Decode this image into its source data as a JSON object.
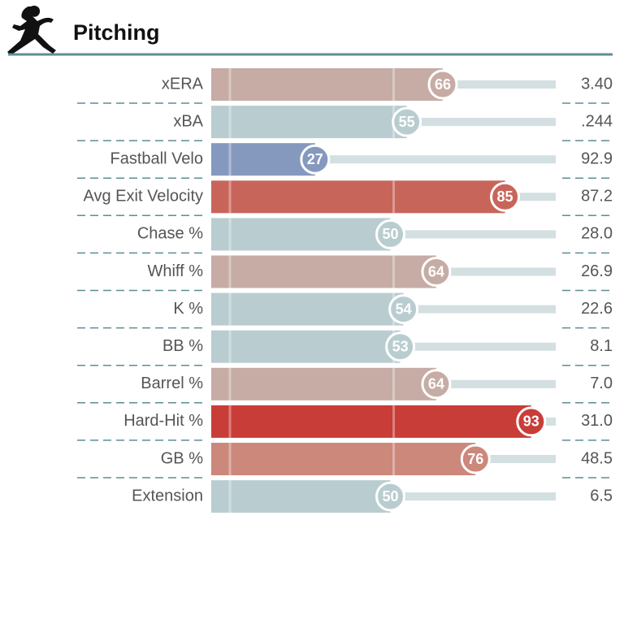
{
  "chart_data": {
    "type": "bar",
    "title": "Pitching",
    "categories": [
      "xERA",
      "xBA",
      "Fastball Velo",
      "Avg Exit Velocity",
      "Chase %",
      "Whiff %",
      "K %",
      "BB %",
      "Barrel %",
      "Hard-Hit %",
      "GB %",
      "Extension"
    ],
    "values": [
      66,
      55,
      27,
      85,
      50,
      64,
      54,
      53,
      64,
      93,
      76,
      50
    ],
    "colors": [
      "#c6aca5",
      "#b9cdd0",
      "#8599bf",
      "#c8655a",
      "#b9cdd0",
      "#c6aca5",
      "#b9cdd0",
      "#b9cdd0",
      "#c6aca5",
      "#c93d39",
      "#cc887b",
      "#b9cdd0"
    ],
    "stats": [
      "3.40",
      ".244",
      "92.9",
      "87.2",
      "28.0",
      "26.9",
      "22.6",
      "8.1",
      "7.0",
      "31.0",
      "48.5",
      "6.5"
    ],
    "xlim": [
      0,
      100
    ],
    "xticks": [
      0,
      50
    ],
    "grid": true
  }
}
